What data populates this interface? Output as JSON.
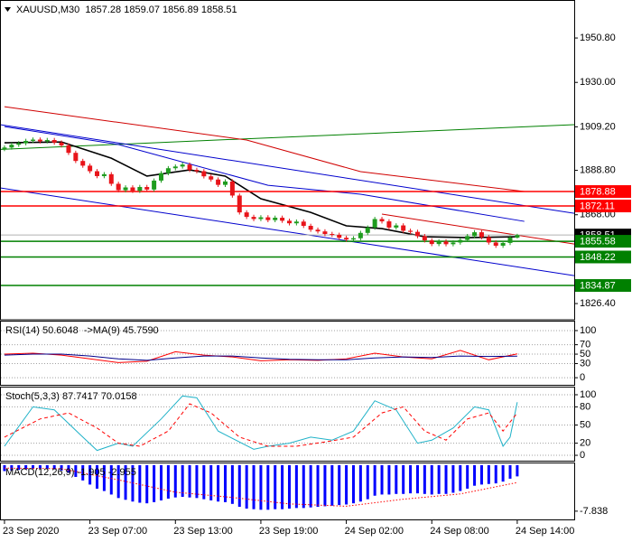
{
  "chart_data": [
    {
      "type": "candlestick",
      "title": "XAUUSD,M30  1857.28 1859.07 1856.89 1858.51",
      "xlim": [
        -0.63,
        80
      ],
      "ylim": [
        1818.8,
        1968.6
      ],
      "yticks": [
        {
          "value": 1950.8,
          "label": "1950.80"
        },
        {
          "value": 1930,
          "label": "1930.00"
        },
        {
          "value": 1909.2,
          "label": "1909.20"
        },
        {
          "value": 1888.8,
          "label": "1888.80"
        },
        {
          "value": 1868,
          "label": "1868.00"
        },
        {
          "value": 1826.4,
          "label": "1826.40"
        }
      ],
      "up_color": "#1e9c1e",
      "down_color": "#e8141a",
      "open": [
        1898.8,
        1899.5,
        1900.8,
        1901.5,
        1902.6,
        1903.2,
        1902.4,
        1903.0,
        1901.8,
        1900.5,
        1897.0,
        1893.2,
        1891.0,
        1888.4,
        1886.1,
        1887.0,
        1882.5,
        1879.5,
        1880.8,
        1879.2,
        1881.0,
        1879.8,
        1884.0,
        1887.5,
        1889.8,
        1890.6,
        1891.5,
        1889.0,
        1888.4,
        1886.0,
        1884.5,
        1882.0,
        1883.6,
        1877.0,
        1869.1,
        1867.0,
        1866.0,
        1866.8,
        1865.5,
        1866.6,
        1865.2,
        1864.0,
        1864.8,
        1862.8,
        1861.0,
        1860.2,
        1859.0,
        1858.6,
        1857.2,
        1856.4,
        1857.0,
        1859.5,
        1862.0,
        1866.0,
        1864.9,
        1862.0,
        1863.0,
        1860.5,
        1860.0,
        1858.0,
        1856.0,
        1854.3,
        1855.5,
        1854.2,
        1855.0,
        1856.2,
        1858.0,
        1859.8,
        1857.5,
        1855.0,
        1853.5,
        1854.8,
        1857.28
      ],
      "high": [
        1900.5,
        1901.8,
        1902.5,
        1903.6,
        1904.2,
        1904.2,
        1904.0,
        1904.0,
        1902.8,
        1901.5,
        1898.0,
        1894.2,
        1892.0,
        1889.4,
        1888.0,
        1888.0,
        1883.5,
        1881.8,
        1881.8,
        1882.0,
        1882.0,
        1885.0,
        1888.5,
        1890.8,
        1891.6,
        1892.5,
        1892.5,
        1890.0,
        1889.4,
        1887.0,
        1885.5,
        1884.6,
        1884.6,
        1878.0,
        1870.1,
        1868.0,
        1867.8,
        1867.8,
        1867.6,
        1867.6,
        1866.2,
        1865.8,
        1865.8,
        1863.8,
        1862.0,
        1861.2,
        1860.0,
        1859.6,
        1858.2,
        1858.0,
        1860.5,
        1863.0,
        1867.0,
        1867.0,
        1865.9,
        1864.0,
        1864.0,
        1861.5,
        1861.0,
        1859.0,
        1857.0,
        1856.5,
        1856.5,
        1856.0,
        1857.2,
        1859.0,
        1860.8,
        1860.8,
        1858.5,
        1856.0,
        1855.8,
        1858.28,
        1859.07
      ],
      "low": [
        1897.8,
        1898.5,
        1899.8,
        1900.5,
        1901.6,
        1901.4,
        1901.4,
        1900.8,
        1899.5,
        1896.0,
        1892.2,
        1890.0,
        1887.4,
        1885.1,
        1885.1,
        1881.5,
        1878.5,
        1878.5,
        1878.2,
        1878.2,
        1878.8,
        1878.8,
        1883.0,
        1886.5,
        1888.8,
        1889.6,
        1888.0,
        1887.4,
        1885.0,
        1883.5,
        1881.0,
        1881.0,
        1876.0,
        1868.1,
        1866.0,
        1865.0,
        1865.0,
        1864.5,
        1864.5,
        1864.2,
        1863.0,
        1863.0,
        1861.8,
        1860.0,
        1859.2,
        1858.0,
        1857.6,
        1856.2,
        1855.4,
        1855.4,
        1856.0,
        1858.5,
        1861.0,
        1863.9,
        1861.0,
        1861.0,
        1859.5,
        1859.0,
        1857.0,
        1855.0,
        1853.3,
        1853.3,
        1853.2,
        1853.2,
        1854.0,
        1855.2,
        1857.0,
        1856.5,
        1854.0,
        1852.5,
        1852.5,
        1853.8,
        1856.89
      ],
      "close": [
        1899.5,
        1900.8,
        1901.5,
        1902.6,
        1903.2,
        1902.4,
        1903.0,
        1901.8,
        1900.5,
        1897.0,
        1893.2,
        1891.0,
        1888.4,
        1886.1,
        1887.0,
        1882.5,
        1879.5,
        1880.8,
        1879.2,
        1881.0,
        1879.8,
        1884.0,
        1887.5,
        1889.8,
        1890.6,
        1891.5,
        1889.0,
        1888.4,
        1886.0,
        1884.5,
        1882.0,
        1883.6,
        1877.0,
        1869.1,
        1867.0,
        1866.0,
        1866.8,
        1865.5,
        1866.6,
        1865.2,
        1864.0,
        1864.8,
        1862.8,
        1861.0,
        1860.2,
        1859.0,
        1858.6,
        1857.2,
        1856.4,
        1857.0,
        1859.5,
        1862.0,
        1866.0,
        1864.9,
        1862.0,
        1863.0,
        1860.5,
        1860.0,
        1858.0,
        1856.0,
        1854.3,
        1855.5,
        1854.2,
        1855.0,
        1856.2,
        1858.0,
        1859.8,
        1857.5,
        1855.0,
        1853.5,
        1854.8,
        1857.28,
        1858.51
      ],
      "lines": [
        {
          "color": "#008000",
          "x": [
            -0.63,
            80
          ],
          "values": [
            1898.6,
            1910.2
          ]
        },
        {
          "color": "#d00000",
          "x": [
            0,
            34,
            50,
            73
          ],
          "values": [
            1918.6,
            1903.0,
            1888.2,
            1878.9
          ]
        },
        {
          "color": "#0000cd",
          "x": [
            0,
            16,
            37,
            50,
            73
          ],
          "values": [
            1909.3,
            1900.9,
            1881.8,
            1877.6,
            1864.9
          ]
        },
        {
          "color": "#0000cd",
          "x": [
            -0.63,
            80
          ],
          "values": [
            1910.2,
            1868.7
          ]
        },
        {
          "color": "#0000cd",
          "x": [
            -0.63,
            80
          ],
          "values": [
            1880.6,
            1839.5
          ]
        },
        {
          "color": "#d00000",
          "x": [
            53,
            80
          ],
          "values": [
            1868.3,
            1854.3
          ]
        },
        {
          "color": "#000000",
          "width": 1.6,
          "x": [
            0,
            8,
            15,
            20,
            26,
            31,
            36,
            43,
            48,
            53,
            59,
            65,
            72
          ],
          "values": [
            1901.7,
            1902.1,
            1894.5,
            1886.1,
            1889.0,
            1886.1,
            1875.5,
            1869.1,
            1862.8,
            1861.5,
            1857.7,
            1857.3,
            1857.7
          ]
        }
      ],
      "levels": [
        {
          "value": 1878.88,
          "color": "#ff0000"
        },
        {
          "value": 1872.11,
          "color": "#ff0000"
        },
        {
          "value": 1858.51,
          "color": "#000000",
          "line_color": "#b0b0b0"
        },
        {
          "value": 1855.58,
          "color": "#008000"
        },
        {
          "value": 1848.22,
          "color": "#008000"
        },
        {
          "value": 1834.87,
          "color": "#008000"
        }
      ]
    },
    {
      "type": "line",
      "title": "RSI(14) 50.6048  ->MA(9) 45.7590",
      "xlim": [
        -0.63,
        80
      ],
      "ylim": [
        -17,
        121
      ],
      "yticks": [
        100,
        70,
        50,
        30,
        0
      ],
      "grid": true,
      "series": [
        {
          "color": "#ff0000",
          "x": [
            0,
            4,
            8,
            12,
            16,
            20,
            24,
            28,
            32,
            36,
            40,
            44,
            48,
            52,
            56,
            60,
            64,
            68,
            72
          ],
          "values": [
            50,
            52,
            48,
            40,
            32,
            35,
            55,
            48,
            44,
            36,
            38,
            37,
            40,
            52,
            44,
            40,
            58,
            38,
            50.6
          ]
        },
        {
          "color": "#00008b",
          "x": [
            0,
            4,
            8,
            12,
            16,
            20,
            24,
            28,
            32,
            36,
            40,
            44,
            48,
            52,
            56,
            60,
            64,
            68,
            72
          ],
          "values": [
            48,
            50,
            50,
            46,
            40,
            37,
            42,
            46,
            46,
            42,
            39,
            38,
            38,
            42,
            44,
            43,
            46,
            45,
            45.8
          ]
        }
      ]
    },
    {
      "type": "line",
      "title": "Stoch(5,3,3) 87.7417 70.0158",
      "xlim": [
        -0.63,
        80
      ],
      "ylim": [
        -10.4,
        113.4
      ],
      "yticks": [
        100,
        80,
        50,
        20,
        0
      ],
      "grid": true,
      "series": [
        {
          "color": "#20b2c8",
          "x": [
            0,
            4,
            7,
            11,
            13,
            16,
            18,
            22,
            25,
            27,
            30,
            35,
            37,
            40,
            43,
            46,
            49,
            52,
            55,
            58,
            60,
            63,
            66,
            68,
            70,
            71,
            72
          ],
          "values": [
            15,
            80,
            75,
            30,
            8,
            20,
            15,
            60,
            98,
            95,
            40,
            10,
            15,
            20,
            30,
            25,
            40,
            90,
            75,
            20,
            25,
            45,
            80,
            75,
            15,
            30,
            87.7
          ]
        },
        {
          "color": "#ff0000",
          "style": "dashed",
          "x": [
            0,
            5,
            9,
            13,
            16,
            19,
            23,
            26,
            29,
            33,
            37,
            41,
            45,
            49,
            53,
            56,
            59,
            62,
            65,
            68,
            70,
            72
          ],
          "values": [
            30,
            60,
            70,
            45,
            20,
            15,
            40,
            85,
            70,
            30,
            15,
            15,
            22,
            30,
            70,
            80,
            40,
            25,
            60,
            70,
            40,
            70
          ]
        }
      ]
    },
    {
      "type": "bar",
      "title": "MACD(12,26,9) -1.905 -2.955",
      "xlim": [
        -0.63,
        80
      ],
      "ylim": [
        -9.4,
        0.46
      ],
      "yticks": [
        -7.838
      ],
      "color": "#0000ff",
      "values": [
        -1.0,
        -0.9,
        -0.8,
        -0.7,
        -0.6,
        -0.6,
        -0.6,
        -0.7,
        -0.9,
        -1.3,
        -2.0,
        -2.6,
        -3.3,
        -4.0,
        -4.4,
        -5.0,
        -5.6,
        -5.9,
        -6.2,
        -6.4,
        -6.5,
        -6.3,
        -6.0,
        -5.7,
        -5.5,
        -5.4,
        -5.5,
        -5.6,
        -5.8,
        -6.0,
        -6.2,
        -6.3,
        -6.6,
        -7.1,
        -7.4,
        -7.5,
        -7.6,
        -7.6,
        -7.5,
        -7.5,
        -7.4,
        -7.3,
        -7.3,
        -7.2,
        -7.1,
        -7.0,
        -6.9,
        -6.8,
        -6.7,
        -6.5,
        -6.2,
        -5.8,
        -5.2,
        -5.0,
        -5.0,
        -4.9,
        -4.9,
        -4.8,
        -4.8,
        -4.9,
        -5.0,
        -4.9,
        -4.9,
        -4.7,
        -4.4,
        -4.0,
        -3.5,
        -3.3,
        -3.2,
        -3.1,
        -2.8,
        -2.3,
        -1.905
      ],
      "series": [
        {
          "color": "#ff0000",
          "style": "dotted",
          "x": [
            0,
            8,
            16,
            24,
            32,
            40,
            48,
            56,
            64,
            72
          ],
          "values": [
            -0.5,
            -0.6,
            -2.5,
            -4.6,
            -5.5,
            -6.6,
            -7.0,
            -5.8,
            -4.9,
            -2.955
          ]
        }
      ],
      "xticks": [
        {
          "value": 0,
          "label": "23 Sep 2020"
        },
        {
          "value": 12,
          "label": "23 Sep 07:00"
        },
        {
          "value": 24,
          "label": "23 Sep 13:00"
        },
        {
          "value": 36,
          "label": "23 Sep 19:00"
        },
        {
          "value": 48,
          "label": "24 Sep 02:00"
        },
        {
          "value": 60,
          "label": "24 Sep 08:00"
        },
        {
          "value": 72,
          "label": "24 Sep 14:00"
        }
      ]
    }
  ]
}
